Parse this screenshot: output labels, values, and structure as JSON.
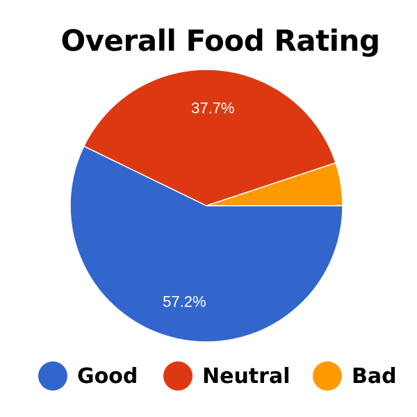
{
  "chart_data": {
    "type": "pie",
    "title": "Overall Food Rating",
    "categories": [
      "Good",
      "Neutral",
      "Bad"
    ],
    "values": [
      57.2,
      37.7,
      5.1
    ],
    "labels": [
      "57.2%",
      "37.7%",
      ""
    ],
    "colors": [
      "#3366cc",
      "#dc3912",
      "#ff9900"
    ],
    "legend_position": "bottom"
  }
}
